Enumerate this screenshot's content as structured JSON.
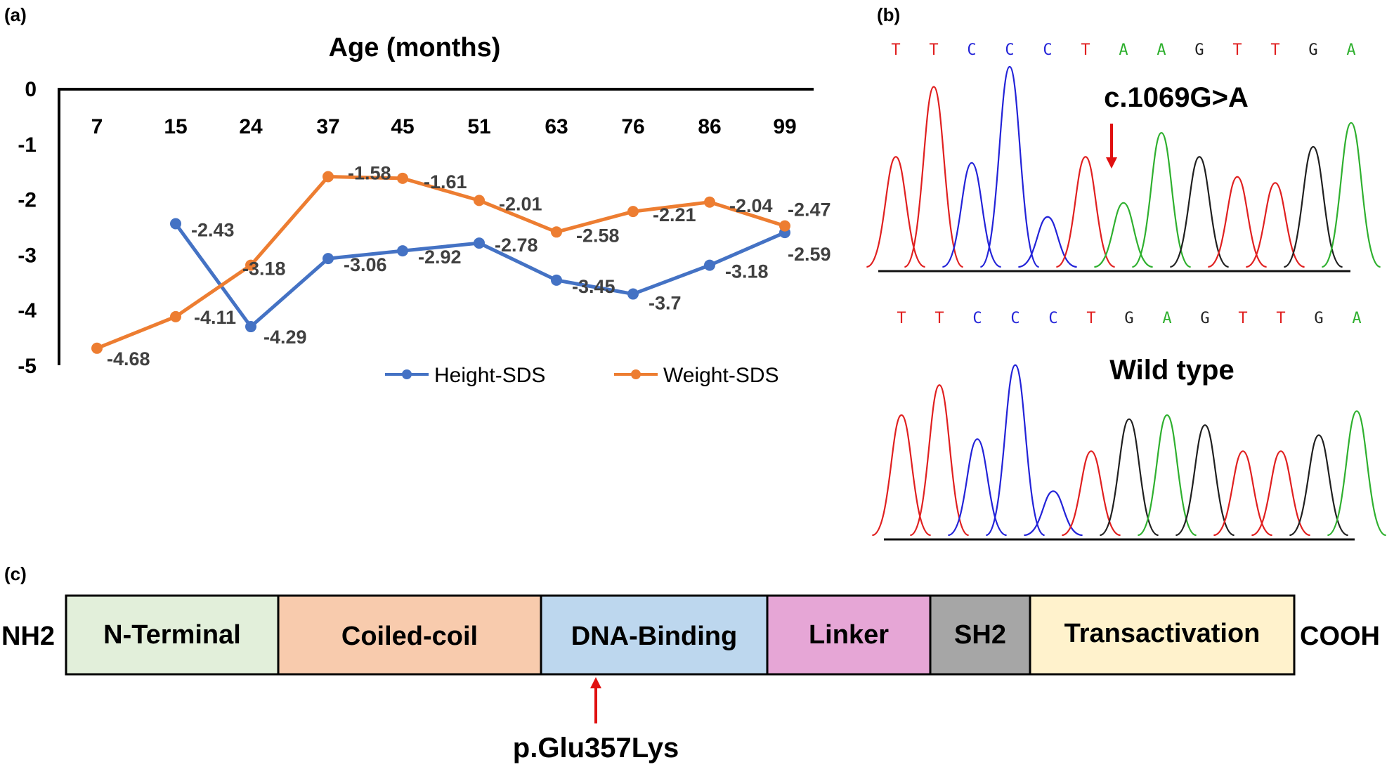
{
  "panels": {
    "a": "(a)",
    "b": "(b)",
    "c": "(c)"
  },
  "chart_data": {
    "type": "line",
    "title": "Age (months)",
    "xlabel": "Age (months)",
    "ylabel": "",
    "categories": [
      "7",
      "15",
      "24",
      "37",
      "45",
      "51",
      "63",
      "76",
      "86",
      "99"
    ],
    "ylim": [
      -5,
      0
    ],
    "yticks": [
      "0",
      "-1",
      "-2",
      "-3",
      "-4",
      "-5"
    ],
    "legend_position": "bottom-right",
    "series": [
      {
        "name": "Height-SDS",
        "color": "#4472c4",
        "values": [
          null,
          -2.43,
          -4.29,
          -3.06,
          -2.92,
          -2.78,
          -3.45,
          -3.7,
          -3.18,
          -2.59
        ],
        "labels": [
          "",
          "-2.43",
          "-4.29",
          "-3.06",
          "-2.92",
          "-2.78",
          "-3.45",
          "-3.7",
          "-3.18",
          "-2.59"
        ]
      },
      {
        "name": "Weight-SDS",
        "color": "#ed7d31",
        "values": [
          -4.68,
          -4.11,
          -3.18,
          -1.58,
          -1.61,
          -2.01,
          -2.58,
          -2.21,
          -2.04,
          -2.47
        ],
        "labels": [
          "-4.68",
          "-4.11",
          "-3.18",
          "-1.58",
          "-1.61",
          "-2.01",
          "-2.58",
          "-2.21",
          "-2.04",
          "-2.47"
        ]
      }
    ]
  },
  "chromatogram": {
    "colors": {
      "A": "#2fb02f",
      "C": "#2323d8",
      "G": "#202020",
      "T": "#e02020"
    },
    "mutant": {
      "bases": [
        "T",
        "T",
        "C",
        "C",
        "C",
        "T",
        "A",
        "A",
        "G",
        "T",
        "T",
        "G",
        "A"
      ],
      "peaks": [
        0.55,
        0.9,
        0.52,
        1.0,
        0.25,
        0.55,
        0.32,
        0.67,
        0.55,
        0.45,
        0.42,
        0.6,
        0.72
      ],
      "variant": "c.1069G>A"
    },
    "wildtype": {
      "bases": [
        "T",
        "T",
        "C",
        "C",
        "C",
        "T",
        "G",
        "A",
        "G",
        "T",
        "T",
        "G",
        "A"
      ],
      "peaks": [
        0.6,
        0.75,
        0.48,
        0.85,
        0.22,
        0.42,
        0.58,
        0.6,
        0.55,
        0.42,
        0.42,
        0.5,
        0.62
      ],
      "label": "Wild type"
    }
  },
  "protein": {
    "start": "NH2",
    "end": "COOH",
    "domains": [
      {
        "name": "N-Terminal",
        "color": "#e2efda"
      },
      {
        "name": "Coiled-coil",
        "color": "#f8cbad"
      },
      {
        "name": "DNA-Binding",
        "color": "#bdd7ee"
      },
      {
        "name": "Linker",
        "color": "#e6a6d6"
      },
      {
        "name": "SH2",
        "color": "#a6a6a6"
      },
      {
        "name": "Transactivation",
        "color": "#fff2cc"
      }
    ],
    "mutation": "p.Glu357Lys"
  }
}
